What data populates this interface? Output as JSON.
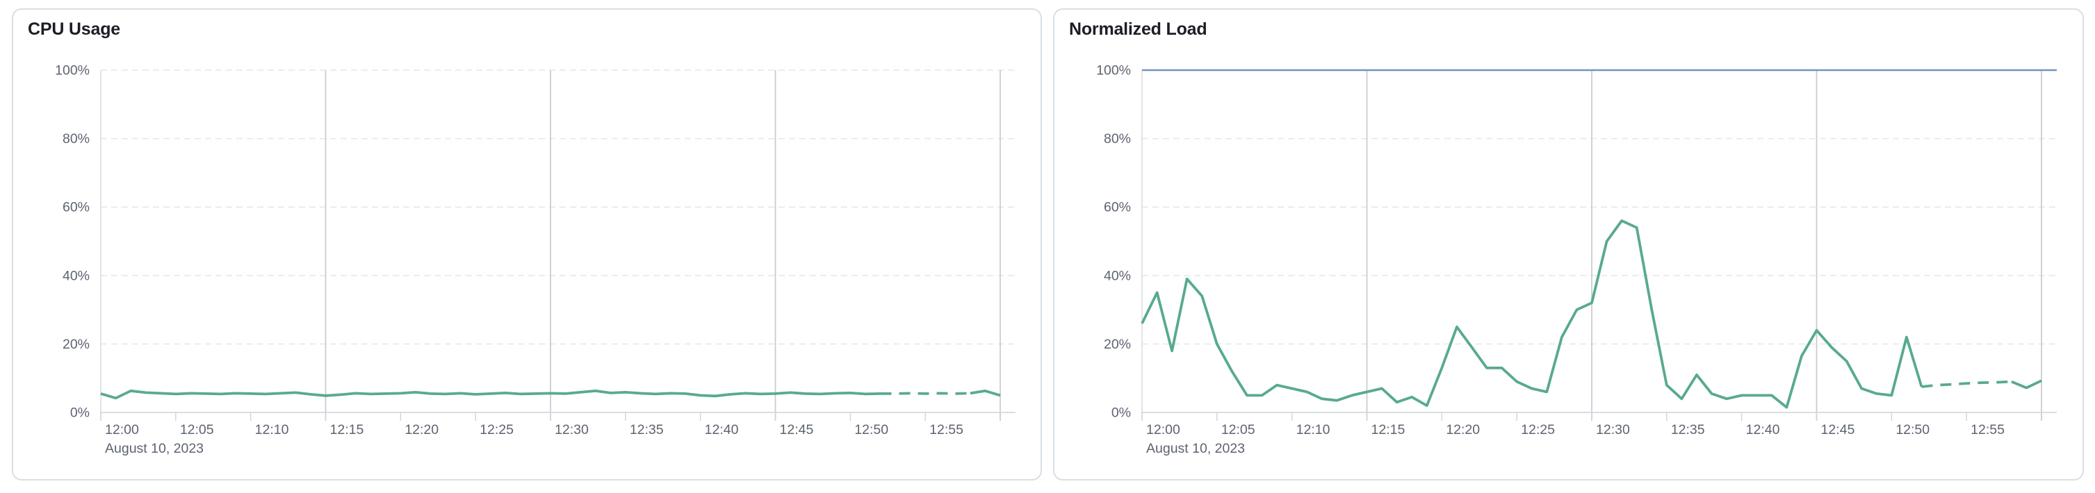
{
  "colors": {
    "series_green": "#58aa8e",
    "limit_blue": "#7295c0",
    "grid_dashed": "#e3e6ed",
    "grid_solid": "#c7cad0",
    "axis_line": "#d5d8de",
    "tick_mark": "#d2d5db",
    "label_text": "#5d6370",
    "title_text": "#1b1e26",
    "panel_border": "#d9dee6"
  },
  "chart_data": [
    {
      "type": "line",
      "title": "CPU Usage",
      "date_label": "August 10, 2023",
      "x_domain_minutes": [
        0,
        60
      ],
      "x_interval_minutes": 1,
      "grid_minutes": [
        15,
        30,
        45,
        60
      ],
      "xticks": [
        {
          "minute": 0,
          "label": "12:00"
        },
        {
          "minute": 5,
          "label": "12:05"
        },
        {
          "minute": 10,
          "label": "12:10"
        },
        {
          "minute": 15,
          "label": "12:15"
        },
        {
          "minute": 20,
          "label": "12:20"
        },
        {
          "minute": 25,
          "label": "12:25"
        },
        {
          "minute": 30,
          "label": "12:30"
        },
        {
          "minute": 35,
          "label": "12:35"
        },
        {
          "minute": 40,
          "label": "12:40"
        },
        {
          "minute": 45,
          "label": "12:45"
        },
        {
          "minute": 50,
          "label": "12:50"
        },
        {
          "minute": 55,
          "label": "12:55"
        }
      ],
      "ylim": [
        0,
        100
      ],
      "yticks": [
        {
          "value": 0,
          "label": "0%"
        },
        {
          "value": 20,
          "label": "20%"
        },
        {
          "value": 40,
          "label": "40%"
        },
        {
          "value": 60,
          "label": "60%"
        },
        {
          "value": 80,
          "label": "80%"
        },
        {
          "value": 100,
          "label": "100%"
        }
      ],
      "series": [
        {
          "color": "#58aa8e",
          "unit": "%",
          "values": [
            5.5,
            4.2,
            6.3,
            5.8,
            5.6,
            5.4,
            5.6,
            5.5,
            5.4,
            5.6,
            5.5,
            5.4,
            5.6,
            5.8,
            5.3,
            4.9,
            5.2,
            5.6,
            5.4,
            5.5,
            5.6,
            5.9,
            5.5,
            5.4,
            5.6,
            5.3,
            5.5,
            5.7,
            5.4,
            5.5,
            5.6,
            5.5,
            5.9,
            6.3,
            5.7,
            5.9,
            5.6,
            5.4,
            5.6,
            5.5,
            5.0,
            4.8,
            5.3,
            5.6,
            5.4,
            5.5,
            5.8,
            5.5,
            5.4,
            5.6,
            5.7,
            5.4,
            5.5,
            5.5,
            5.6,
            5.5,
            5.6,
            5.5,
            5.6,
            6.3,
            5.0
          ],
          "segments": [
            {
              "from": 0,
              "to": 52,
              "dashed": false
            },
            {
              "from": 52,
              "to": 58,
              "dashed": true
            },
            {
              "from": 58,
              "to": 60,
              "dashed": false
            }
          ]
        }
      ]
    },
    {
      "type": "line",
      "title": "Normalized Load",
      "date_label": "August 10, 2023",
      "x_domain_minutes": [
        0,
        60
      ],
      "x_interval_minutes": 1,
      "grid_minutes": [
        15,
        30,
        45,
        60
      ],
      "xticks": [
        {
          "minute": 0,
          "label": "12:00"
        },
        {
          "minute": 5,
          "label": "12:05"
        },
        {
          "minute": 10,
          "label": "12:10"
        },
        {
          "minute": 15,
          "label": "12:15"
        },
        {
          "minute": 20,
          "label": "12:20"
        },
        {
          "minute": 25,
          "label": "12:25"
        },
        {
          "minute": 30,
          "label": "12:30"
        },
        {
          "minute": 35,
          "label": "12:35"
        },
        {
          "minute": 40,
          "label": "12:40"
        },
        {
          "minute": 45,
          "label": "12:45"
        },
        {
          "minute": 50,
          "label": "12:50"
        },
        {
          "minute": 55,
          "label": "12:55"
        }
      ],
      "ylim": [
        0,
        100
      ],
      "yticks": [
        {
          "value": 0,
          "label": "0%"
        },
        {
          "value": 20,
          "label": "20%"
        },
        {
          "value": 40,
          "label": "40%"
        },
        {
          "value": 60,
          "label": "60%"
        },
        {
          "value": 80,
          "label": "80%"
        },
        {
          "value": 100,
          "label": "100%"
        }
      ],
      "limit_line": {
        "value": 100,
        "color": "#7295c0"
      },
      "series": [
        {
          "color": "#58aa8e",
          "unit": "%",
          "values": [
            26,
            35,
            18,
            39,
            34,
            20,
            12,
            5,
            5,
            8,
            7,
            6,
            4,
            3.5,
            5,
            6,
            7,
            3,
            4.5,
            2,
            13,
            25,
            19,
            13,
            13,
            9,
            7,
            6,
            22,
            30,
            32,
            50,
            56,
            54,
            30,
            8,
            4,
            11,
            5.5,
            4,
            5,
            5,
            5,
            1.5,
            16.5,
            24,
            19,
            15,
            7,
            5.5,
            5,
            22,
            7.5,
            8,
            8.2,
            8.5,
            8.7,
            8.8,
            9,
            7.2,
            9.3
          ],
          "segments": [
            {
              "from": 0,
              "to": 52,
              "dashed": false
            },
            {
              "from": 52,
              "to": 58,
              "dashed": true
            },
            {
              "from": 58,
              "to": 60,
              "dashed": false
            }
          ]
        }
      ]
    }
  ]
}
